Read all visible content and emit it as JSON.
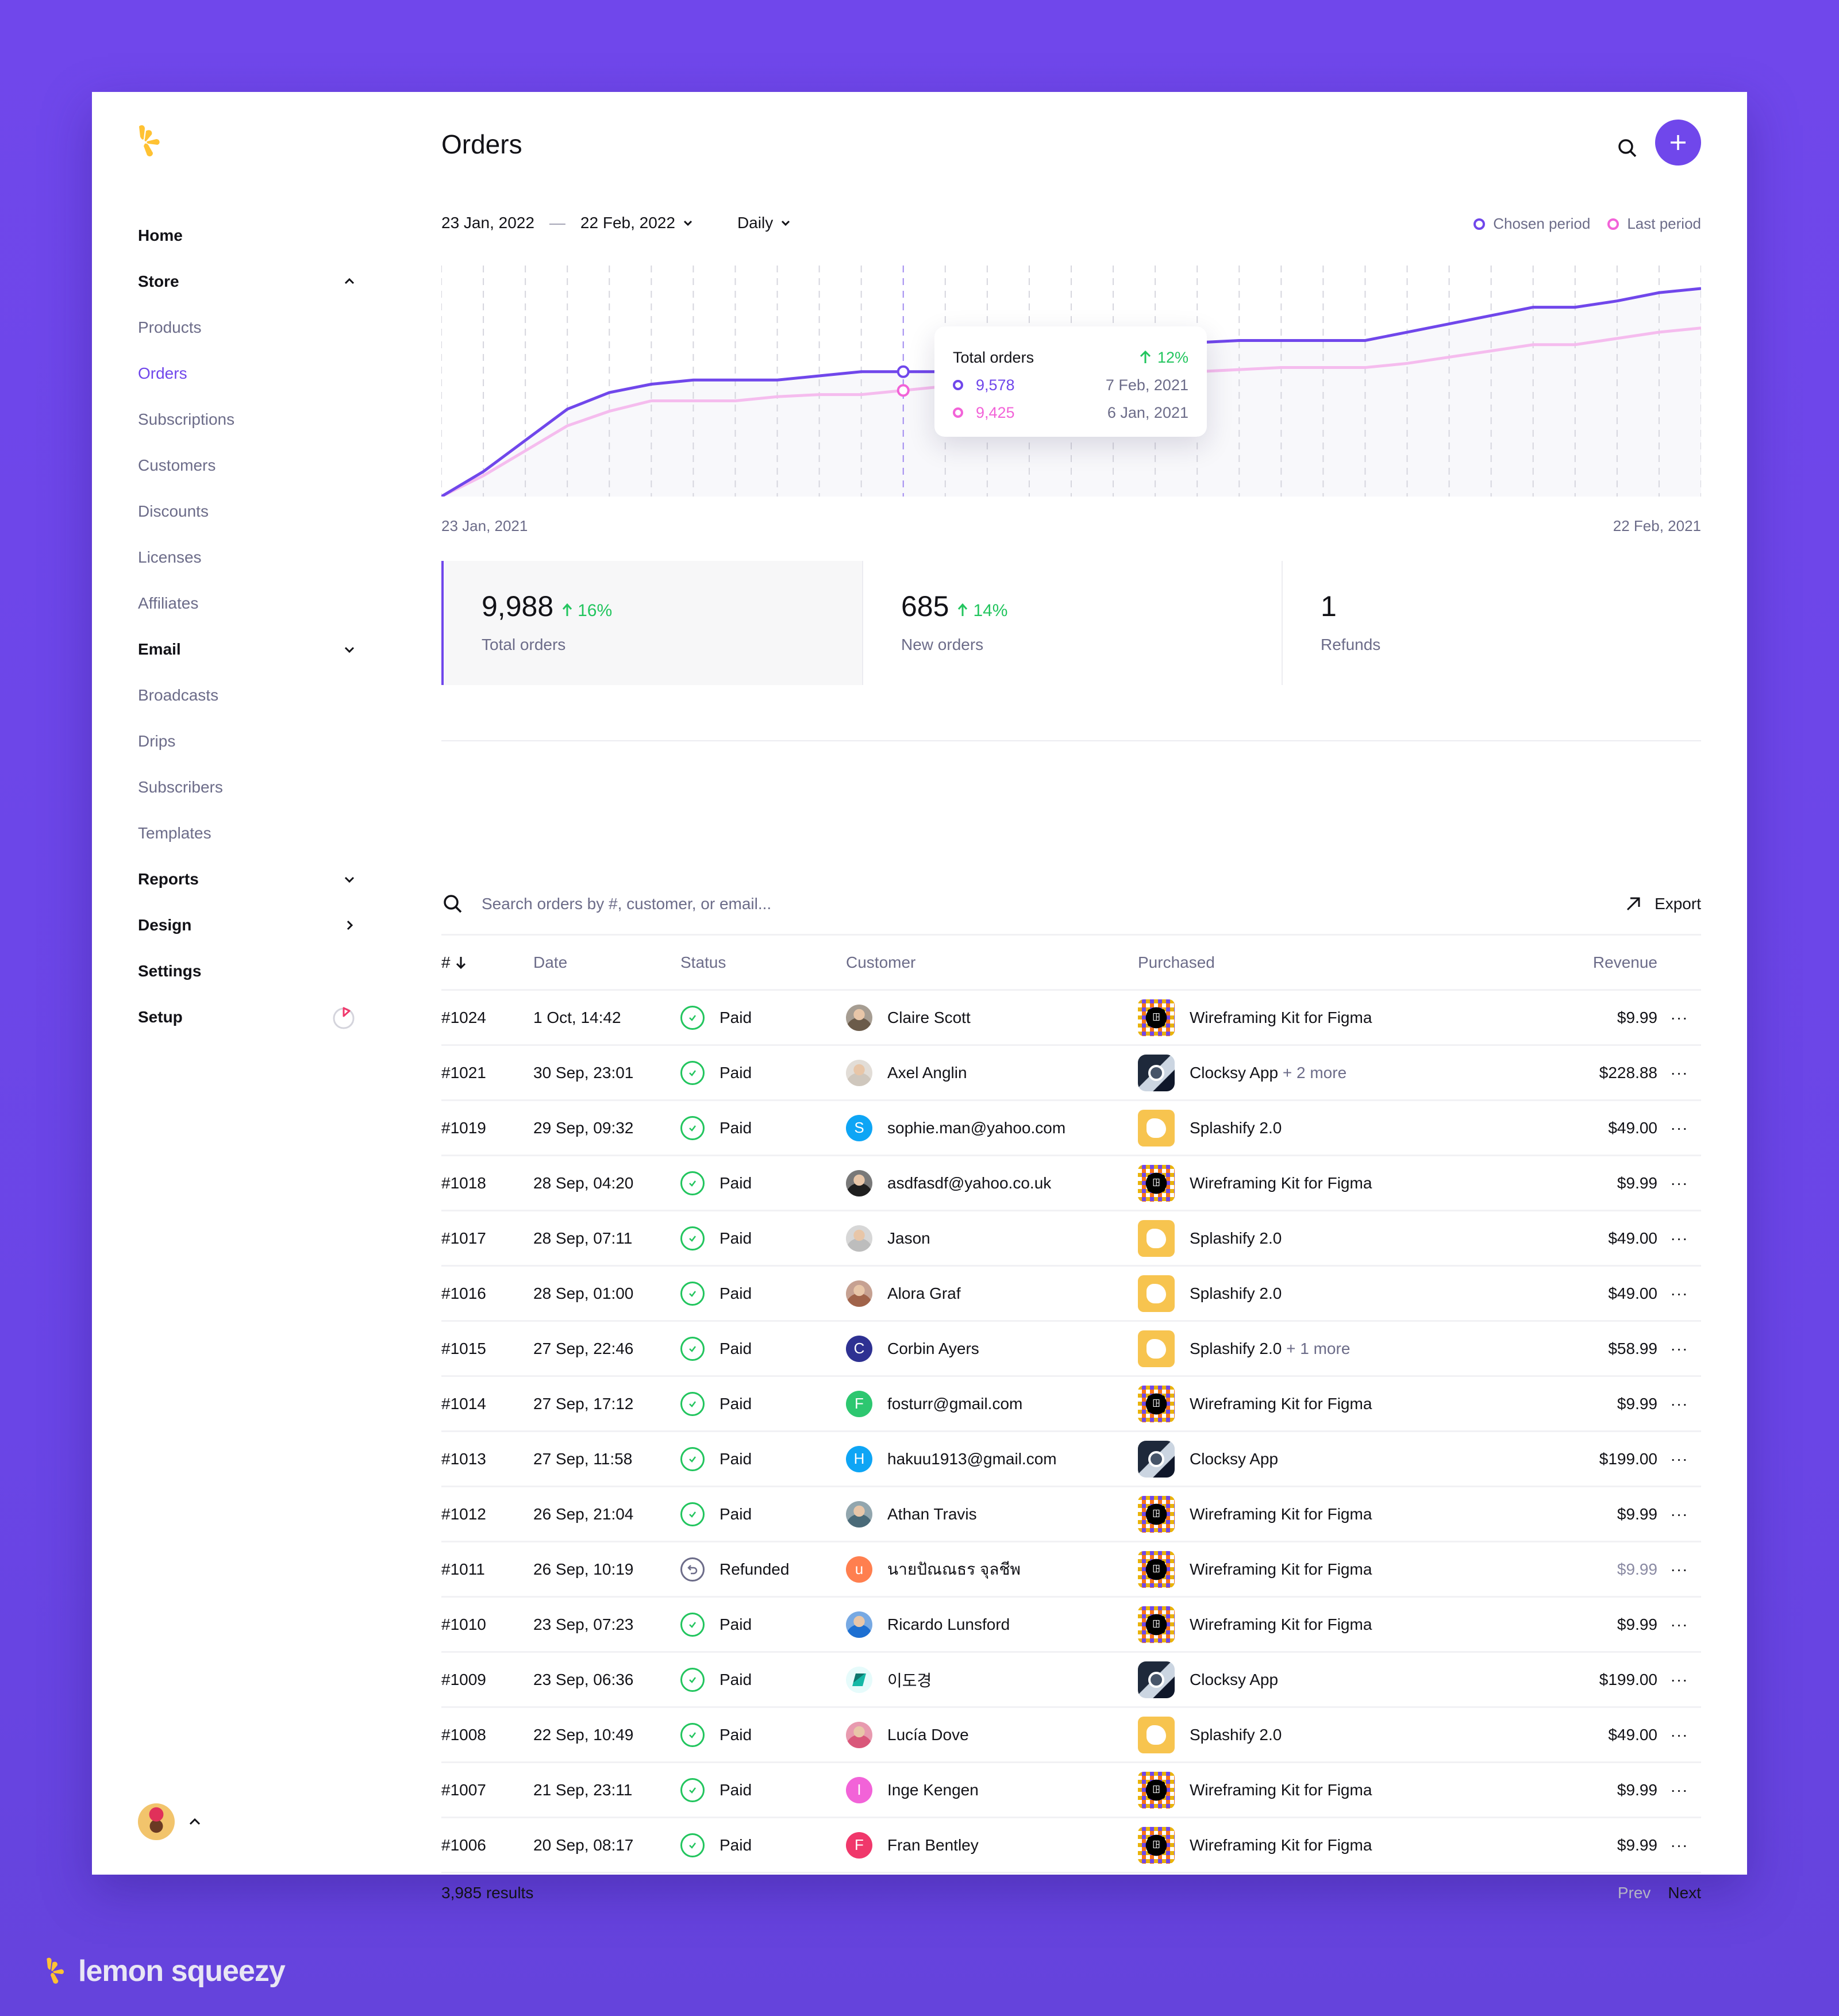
{
  "app": {
    "brand_name": "lemon squeezy",
    "accent": "#7047EB",
    "logo_color": "#FFC233"
  },
  "sidebar": {
    "items": [
      {
        "label": "Home",
        "type": "parent"
      },
      {
        "label": "Store",
        "type": "parent",
        "chevron": "up"
      },
      {
        "label": "Products",
        "type": "child"
      },
      {
        "label": "Orders",
        "type": "child",
        "active": true
      },
      {
        "label": "Subscriptions",
        "type": "child"
      },
      {
        "label": "Customers",
        "type": "child"
      },
      {
        "label": "Discounts",
        "type": "child"
      },
      {
        "label": "Licenses",
        "type": "child"
      },
      {
        "label": "Affiliates",
        "type": "child"
      },
      {
        "label": "Email",
        "type": "parent",
        "chevron": "down"
      },
      {
        "label": "Broadcasts",
        "type": "child"
      },
      {
        "label": "Drips",
        "type": "child"
      },
      {
        "label": "Subscribers",
        "type": "child"
      },
      {
        "label": "Templates",
        "type": "child"
      },
      {
        "label": "Reports",
        "type": "parent",
        "chevron": "down"
      },
      {
        "label": "Design",
        "type": "parent",
        "chevron": "right"
      },
      {
        "label": "Settings",
        "type": "parent"
      },
      {
        "label": "Setup",
        "type": "parent",
        "progress_icon": true
      }
    ]
  },
  "header": {
    "title": "Orders"
  },
  "filters": {
    "date_start": "23 Jan, 2022",
    "date_sep": "—",
    "date_end": "22 Feb, 2022",
    "interval": "Daily"
  },
  "legend": {
    "chosen": "Chosen period",
    "last": "Last period",
    "chosen_color": "#7047EB",
    "last_color": "#F263D8"
  },
  "chart_axis": {
    "start": "23 Jan, 2021",
    "end": "22 Feb, 2021"
  },
  "tooltip": {
    "title": "Total orders",
    "delta": "12%",
    "chosen_value": "9,578",
    "chosen_date": "7 Feb, 2021",
    "last_value": "9,425",
    "last_date": "6 Jan, 2021"
  },
  "chart_data": {
    "type": "line",
    "title": "Total orders",
    "x_start": "23 Jan, 2021",
    "x_end": "22 Feb, 2021",
    "points": 31,
    "series": [
      {
        "name": "Chosen period",
        "color": "#7047EB",
        "values": [
          0,
          12,
          27,
          42,
          50,
          54,
          56,
          56,
          56,
          58,
          60,
          60,
          60,
          63,
          65,
          68,
          70,
          72,
          74,
          75,
          75,
          75,
          75,
          79,
          83,
          87,
          91,
          91,
          94,
          98,
          100
        ]
      },
      {
        "name": "Last period",
        "color": "#F5BCEE",
        "values": [
          0,
          10,
          22,
          34,
          41,
          46,
          46,
          46,
          48,
          49,
          49,
          51,
          53,
          53,
          55,
          56,
          57,
          58,
          60,
          61,
          62,
          62,
          62,
          64,
          67,
          70,
          73,
          73,
          76,
          79,
          81
        ]
      }
    ],
    "highlight": {
      "index": 11,
      "chosen": 9578,
      "last": 9425
    },
    "grid": "vertical dashed"
  },
  "stats": [
    {
      "value": "9,988",
      "delta": "16%",
      "label": "Total orders",
      "active": true
    },
    {
      "value": "685",
      "delta": "14%",
      "label": "New orders"
    },
    {
      "value": "1",
      "delta": "",
      "label": "Refunds"
    }
  ],
  "search": {
    "placeholder": "Search orders by #, customer, or email...",
    "export_label": "Export"
  },
  "table": {
    "columns": [
      "#",
      "Date",
      "Status",
      "Customer",
      "Purchased",
      "Revenue"
    ],
    "rows": [
      {
        "id": "#1024",
        "date": "1 Oct, 14:42",
        "status": "Paid",
        "customer": "Claire Scott",
        "avatar": {
          "type": "photo",
          "color": "#6b5b4a"
        },
        "product": "Wireframing Kit for Figma",
        "product_icon": "wire",
        "more": "",
        "revenue": "$9.99"
      },
      {
        "id": "#1021",
        "date": "30 Sep, 23:01",
        "status": "Paid",
        "customer": "Axel Anglin",
        "avatar": {
          "type": "photo",
          "color": "#cfc7bd"
        },
        "product": "Clocksy App",
        "product_icon": "clock",
        "more": "+ 2 more",
        "revenue": "$228.88"
      },
      {
        "id": "#1019",
        "date": "29 Sep, 09:32",
        "status": "Paid",
        "customer": "sophie.man@yahoo.com",
        "avatar": {
          "type": "letter",
          "letter": "S",
          "color": "#0EA5F5"
        },
        "product": "Splashify 2.0",
        "product_icon": "splash",
        "more": "",
        "revenue": "$49.00"
      },
      {
        "id": "#1018",
        "date": "28 Sep, 04:20",
        "status": "Paid",
        "customer": "asdfasdf@yahoo.co.uk",
        "avatar": {
          "type": "photo",
          "color": "#1f1f1f"
        },
        "product": "Wireframing Kit for Figma",
        "product_icon": "wire",
        "more": "",
        "revenue": "$9.99"
      },
      {
        "id": "#1017",
        "date": "28 Sep, 07:11",
        "status": "Paid",
        "customer": "Jason",
        "avatar": {
          "type": "photo",
          "color": "#bdbdbd"
        },
        "product": "Splashify 2.0",
        "product_icon": "splash",
        "more": "",
        "revenue": "$49.00"
      },
      {
        "id": "#1016",
        "date": "28 Sep, 01:00",
        "status": "Paid",
        "customer": "Alora Graf",
        "avatar": {
          "type": "photo",
          "color": "#a0634a"
        },
        "product": "Splashify 2.0",
        "product_icon": "splash",
        "more": "",
        "revenue": "$49.00"
      },
      {
        "id": "#1015",
        "date": "27 Sep, 22:46",
        "status": "Paid",
        "customer": "Corbin Ayers",
        "avatar": {
          "type": "letter",
          "letter": "C",
          "color": "#2E3192"
        },
        "product": "Splashify 2.0",
        "product_icon": "splash",
        "more": "+ 1 more",
        "revenue": "$58.99"
      },
      {
        "id": "#1014",
        "date": "27 Sep, 17:12",
        "status": "Paid",
        "customer": "fosturr@gmail.com",
        "avatar": {
          "type": "letter",
          "letter": "F",
          "color": "#2DC770"
        },
        "product": "Wireframing Kit for Figma",
        "product_icon": "wire",
        "more": "",
        "revenue": "$9.99"
      },
      {
        "id": "#1013",
        "date": "27 Sep, 11:58",
        "status": "Paid",
        "customer": "hakuu1913@gmail.com",
        "avatar": {
          "type": "letter",
          "letter": "H",
          "color": "#0EA5F5"
        },
        "product": "Clocksy App",
        "product_icon": "clock",
        "more": "",
        "revenue": "$199.00"
      },
      {
        "id": "#1012",
        "date": "26 Sep, 21:04",
        "status": "Paid",
        "customer": "Athan Travis",
        "avatar": {
          "type": "photo",
          "color": "#4a6a78"
        },
        "product": "Wireframing Kit for Figma",
        "product_icon": "wire",
        "more": "",
        "revenue": "$9.99"
      },
      {
        "id": "#1011",
        "date": "26 Sep, 10:19",
        "status": "Refunded",
        "customer": "นายปัณณธร จุลชีพ",
        "avatar": {
          "type": "letter",
          "letter": "u",
          "color": "#FF7F4F"
        },
        "product": "Wireframing Kit for Figma",
        "product_icon": "wire",
        "more": "",
        "revenue": "$9.99",
        "revenue_muted": true
      },
      {
        "id": "#1010",
        "date": "23 Sep, 07:23",
        "status": "Paid",
        "customer": "Ricardo Lunsford",
        "avatar": {
          "type": "photo",
          "color": "#1d6fd1"
        },
        "product": "Wireframing Kit for Figma",
        "product_icon": "wire",
        "more": "",
        "revenue": "$9.99"
      },
      {
        "id": "#1009",
        "date": "23 Sep, 06:36",
        "status": "Paid",
        "customer": "이도경",
        "avatar": {
          "type": "logo",
          "color": "#e6fbfb"
        },
        "product": "Clocksy App",
        "product_icon": "clock",
        "more": "",
        "revenue": "$199.00"
      },
      {
        "id": "#1008",
        "date": "22 Sep, 10:49",
        "status": "Paid",
        "customer": "Lucía Dove",
        "avatar": {
          "type": "photo",
          "color": "#d9577a"
        },
        "product": "Splashify 2.0",
        "product_icon": "splash",
        "more": "",
        "revenue": "$49.00"
      },
      {
        "id": "#1007",
        "date": "21 Sep, 23:11",
        "status": "Paid",
        "customer": "Inge Kengen",
        "avatar": {
          "type": "letter",
          "letter": "I",
          "color": "#F263D8"
        },
        "product": "Wireframing Kit for Figma",
        "product_icon": "wire",
        "more": "",
        "revenue": "$9.99"
      },
      {
        "id": "#1006",
        "date": "20 Sep, 08:17",
        "status": "Paid",
        "customer": "Fran Bentley",
        "avatar": {
          "type": "letter",
          "letter": "F",
          "color": "#F0386B"
        },
        "product": "Wireframing Kit for Figma",
        "product_icon": "wire",
        "more": "",
        "revenue": "$9.99"
      }
    ]
  },
  "footer": {
    "results": "3,985 results",
    "prev": "Prev",
    "next": "Next"
  }
}
